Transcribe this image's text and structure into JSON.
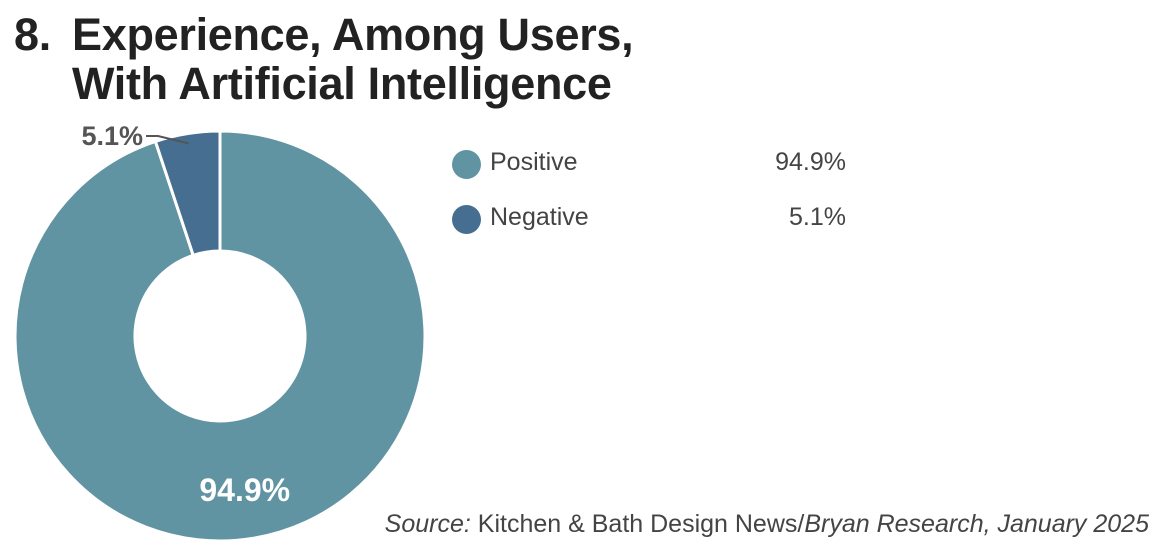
{
  "title": {
    "number": "8.",
    "line1": "Experience, Among Users,",
    "line2": "With Artificial Intelligence"
  },
  "chart_data": {
    "type": "pie",
    "donut": true,
    "categories": [
      "Positive",
      "Negative"
    ],
    "values": [
      94.9,
      5.1
    ],
    "labels": [
      "94.9%",
      "5.1%"
    ],
    "colors": [
      "#6194a2",
      "#466e91"
    ],
    "legend": {
      "placement": "right",
      "items": [
        {
          "label": "Positive",
          "value": "94.9%",
          "color": "#6194a2"
        },
        {
          "label": "Negative",
          "value": "5.1%",
          "color": "#466e91"
        }
      ]
    }
  },
  "source": {
    "prefix": "Source:",
    "publication": "Kitchen & Bath Design News/",
    "rest": "Bryan Research, January 2025"
  }
}
